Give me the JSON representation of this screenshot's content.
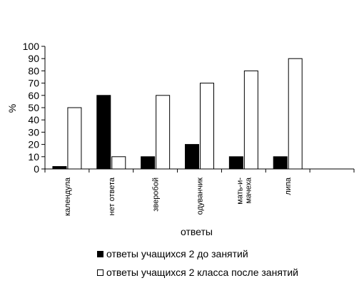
{
  "chart_data": {
    "type": "bar",
    "title": "",
    "xlabel": "ответы",
    "ylabel": "%",
    "ylim": [
      0,
      100
    ],
    "yticks": [
      0,
      10,
      20,
      30,
      40,
      50,
      60,
      70,
      80,
      90,
      100
    ],
    "categories": [
      "календула",
      "нет ответа",
      "зверобой",
      "одуванчик",
      "мать-и-\nмачеха",
      "липа"
    ],
    "series": [
      {
        "name": "ответы учащихся 2 до занятий",
        "color": "#000000",
        "values": [
          2,
          60,
          10,
          20,
          10,
          10
        ]
      },
      {
        "name": "ответы учащихся 2 класса после занятий",
        "color": "#ffffff",
        "values": [
          50,
          10,
          60,
          70,
          80,
          90
        ]
      }
    ],
    "grid": false,
    "legend_position": "bottom"
  }
}
